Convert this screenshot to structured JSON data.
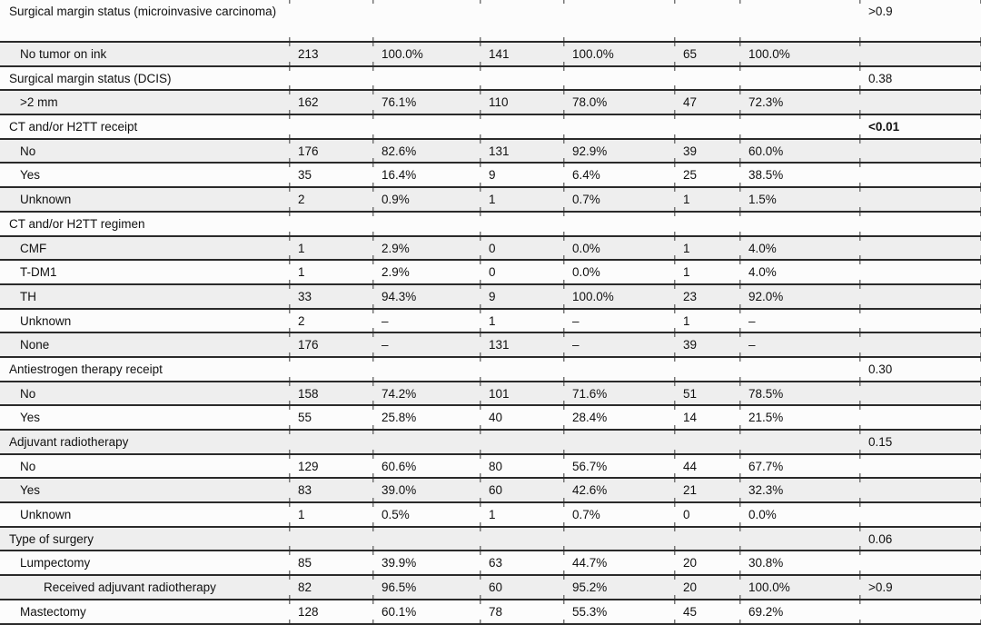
{
  "colors": {
    "stripe_row": "#eeeeee",
    "plain_row": "#fcfcfc",
    "rule_line": "#2a2a2a",
    "text": "#111111",
    "tick_mark": "#777777"
  },
  "table": {
    "column_kinds": [
      "label",
      "n",
      "percent",
      "n",
      "percent",
      "n",
      "percent",
      "p_value"
    ],
    "rows": [
      {
        "label": "Surgical margin status (microinvasive carcinoma)",
        "level": "category",
        "p": ">0.9",
        "p_bold": false
      },
      {
        "label": "No tumor on ink",
        "level": "item",
        "cells": [
          "213",
          "100.0%",
          "141",
          "100.0%",
          "65",
          "100.0%"
        ]
      },
      {
        "label": "Surgical margin status (DCIS)",
        "level": "category",
        "p": "0.38",
        "p_bold": false
      },
      {
        "label": ">2 mm",
        "level": "item",
        "cells": [
          "162",
          "76.1%",
          "110",
          "78.0%",
          "47",
          "72.3%"
        ]
      },
      {
        "label": "CT and/or H2TT receipt",
        "level": "category",
        "p": "<0.01",
        "p_bold": true
      },
      {
        "label": "No",
        "level": "item",
        "cells": [
          "176",
          "82.6%",
          "131",
          "92.9%",
          "39",
          "60.0%"
        ]
      },
      {
        "label": "Yes",
        "level": "item",
        "cells": [
          "35",
          "16.4%",
          "9",
          "6.4%",
          "25",
          "38.5%"
        ]
      },
      {
        "label": "Unknown",
        "level": "item",
        "cells": [
          "2",
          "0.9%",
          "1",
          "0.7%",
          "1",
          "1.5%"
        ]
      },
      {
        "label": "CT and/or H2TT regimen",
        "level": "category"
      },
      {
        "label": "CMF",
        "level": "item",
        "cells": [
          "1",
          "2.9%",
          "0",
          "0.0%",
          "1",
          "4.0%"
        ]
      },
      {
        "label": "T-DM1",
        "level": "item",
        "cells": [
          "1",
          "2.9%",
          "0",
          "0.0%",
          "1",
          "4.0%"
        ]
      },
      {
        "label": "TH",
        "level": "item",
        "cells": [
          "33",
          "94.3%",
          "9",
          "100.0%",
          "23",
          "92.0%"
        ]
      },
      {
        "label": "Unknown",
        "level": "item",
        "cells": [
          "2",
          "–",
          "1",
          "–",
          "1",
          "–"
        ]
      },
      {
        "label": "None",
        "level": "item",
        "cells": [
          "176",
          "–",
          "131",
          "–",
          "39",
          "–"
        ]
      },
      {
        "label": "Antiestrogen therapy receipt",
        "level": "category",
        "p": "0.30",
        "p_bold": false
      },
      {
        "label": "No",
        "level": "item",
        "cells": [
          "158",
          "74.2%",
          "101",
          "71.6%",
          "51",
          "78.5%"
        ]
      },
      {
        "label": "Yes",
        "level": "item",
        "cells": [
          "55",
          "25.8%",
          "40",
          "28.4%",
          "14",
          "21.5%"
        ]
      },
      {
        "label": "Adjuvant radiotherapy",
        "level": "category",
        "p": "0.15",
        "p_bold": false
      },
      {
        "label": "No",
        "level": "item",
        "cells": [
          "129",
          "60.6%",
          "80",
          "56.7%",
          "44",
          "67.7%"
        ]
      },
      {
        "label": "Yes",
        "level": "item",
        "cells": [
          "83",
          "39.0%",
          "60",
          "42.6%",
          "21",
          "32.3%"
        ]
      },
      {
        "label": "Unknown",
        "level": "item",
        "cells": [
          "1",
          "0.5%",
          "1",
          "0.7%",
          "0",
          "0.0%"
        ]
      },
      {
        "label": "Type of surgery",
        "level": "category",
        "p": "0.06",
        "p_bold": false
      },
      {
        "label": "Lumpectomy",
        "level": "item",
        "cells": [
          "85",
          "39.9%",
          "63",
          "44.7%",
          "20",
          "30.8%"
        ]
      },
      {
        "label": "Received adjuvant radiotherapy",
        "level": "subitem",
        "cells": [
          "82",
          "96.5%",
          "60",
          "95.2%",
          "20",
          "100.0%"
        ],
        "p": ">0.9",
        "p_bold": false
      },
      {
        "label": "Mastectomy",
        "level": "item",
        "cells": [
          "128",
          "60.1%",
          "78",
          "55.3%",
          "45",
          "69.2%"
        ]
      }
    ]
  }
}
